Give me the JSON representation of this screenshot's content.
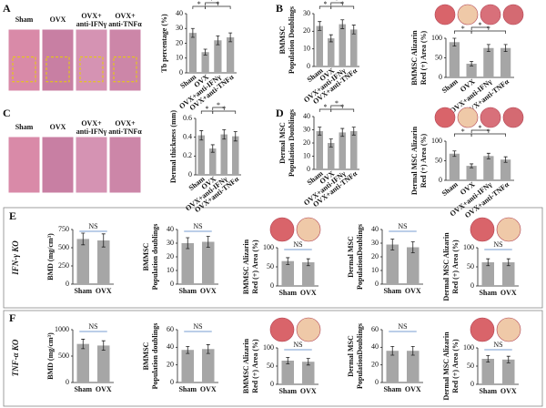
{
  "panels": [
    {
      "letter": "A",
      "image_labels": [
        [
          "Sham"
        ],
        [
          "OVX"
        ],
        [
          "OVX+",
          "anti-IFNγ"
        ],
        [
          "OVX+",
          "anti-TNFα"
        ]
      ]
    },
    {
      "letter": "B"
    },
    {
      "letter": "C",
      "image_labels": [
        [
          "Sham"
        ],
        [
          "OVX"
        ],
        [
          "OVX+",
          "anti-IFNγ"
        ],
        [
          "OVX+",
          "anti-TNFα"
        ]
      ]
    },
    {
      "letter": "D"
    },
    {
      "letter": "E",
      "label": "IFN-γ KO"
    },
    {
      "letter": "F",
      "label": "TNF-α KO"
    }
  ],
  "chart_data": [
    {
      "type": "bar",
      "ylabel": [
        "Tb percentage (%)"
      ],
      "categories": [
        "Sham",
        "OVX",
        "OVX+anti-IFNγ",
        "OVX+anti-TNFα"
      ],
      "values": [
        27,
        14,
        22,
        24
      ],
      "errors": [
        3,
        2,
        3,
        3
      ],
      "ylim": [
        0,
        40
      ],
      "yticks": [
        0,
        10,
        20,
        30,
        40
      ],
      "color": "#a6a6a6",
      "annotations": [
        "*",
        "*",
        "*"
      ]
    },
    {
      "type": "bar",
      "ylabel": [
        "BMMSC",
        "Population Doublings"
      ],
      "categories": [
        "Sham",
        "OVX",
        "OVX+anti-IFNγ",
        "OVX+anti-TNFα"
      ],
      "values": [
        23,
        16,
        24,
        21
      ],
      "errors": [
        2.5,
        2,
        2.5,
        2.5
      ],
      "ylim": [
        0,
        30
      ],
      "yticks": [
        0,
        10,
        20,
        30
      ],
      "color": "#a6a6a6",
      "annotations": [
        "*",
        "*",
        "*"
      ]
    },
    {
      "type": "bar",
      "ylabel": [
        "BMMSC Alizarin",
        "Red (+) Area (%)"
      ],
      "categories": [
        "Sham",
        "OVX",
        "OVX+anti-IFNγ",
        "OVX+anti-TNFα"
      ],
      "values": [
        90,
        35,
        75,
        75
      ],
      "errors": [
        10,
        6,
        9,
        9
      ],
      "ylim": [
        0,
        100
      ],
      "yticks": [
        0,
        50,
        100
      ],
      "color": "#a6a6a6",
      "annotations": [
        "*",
        "*",
        "*"
      ]
    },
    {
      "type": "bar",
      "ylabel": [
        "Dermal thickness (mm)"
      ],
      "categories": [
        "Sham",
        "OVX",
        "OVX+anti-IFNγ",
        "OVX+anti-TNFα"
      ],
      "values": [
        0.42,
        0.28,
        0.43,
        0.41
      ],
      "errors": [
        0.05,
        0.04,
        0.05,
        0.05
      ],
      "ylim": [
        0,
        0.6
      ],
      "yticks": [
        0,
        0.2,
        0.4,
        0.6
      ],
      "color": "#a6a6a6",
      "annotations": [
        "*",
        "*",
        "*"
      ]
    },
    {
      "type": "bar",
      "ylabel": [
        "Dermal MSC",
        "Population Doublings"
      ],
      "categories": [
        "Sham",
        "OVX",
        "OVX+anti-IFNγ",
        "OVX+anti-TNFα"
      ],
      "values": [
        29,
        20,
        28,
        29
      ],
      "errors": [
        3,
        3,
        3,
        3
      ],
      "ylim": [
        0,
        40
      ],
      "yticks": [
        0,
        10,
        20,
        30,
        40
      ],
      "color": "#a6a6a6",
      "annotations": [
        "*",
        "*",
        "*"
      ]
    },
    {
      "type": "bar",
      "ylabel": [
        "Dermal MSC Alizarin",
        "Red (+) Area (%)"
      ],
      "categories": [
        "Sham",
        "OVX",
        "OVX+anti-IFNγ",
        "OVX+anti-TNFα"
      ],
      "values": [
        68,
        37,
        62,
        53
      ],
      "errors": [
        7,
        5,
        7,
        7
      ],
      "ylim": [
        0,
        100
      ],
      "yticks": [
        0,
        50,
        100
      ],
      "color": "#a6a6a6",
      "annotations": [
        "*",
        "*",
        "*"
      ]
    },
    {
      "type": "bar",
      "ylabel": [
        "BMD  (mg/cm³)"
      ],
      "categories": [
        "Sham",
        "OVX"
      ],
      "values": [
        620,
        600
      ],
      "errors": [
        80,
        90
      ],
      "ylim": [
        0,
        750
      ],
      "yticks": [
        0,
        250,
        500,
        750
      ],
      "color": "#a6a6a6",
      "annotations": [
        "NS"
      ]
    },
    {
      "type": "bar",
      "ylabel": [
        "BMMSC",
        "Population doublings"
      ],
      "categories": [
        "Sham",
        "OVX"
      ],
      "values": [
        30,
        31
      ],
      "errors": [
        4,
        4
      ],
      "ylim": [
        0,
        40
      ],
      "yticks": [
        0,
        10,
        20,
        30,
        40
      ],
      "color": "#a6a6a6",
      "annotations": [
        "NS"
      ]
    },
    {
      "type": "bar",
      "ylabel": [
        "BMMSC Alizarin",
        "Red (+) Area (%)"
      ],
      "categories": [
        "Sham",
        "OVX"
      ],
      "values": [
        65,
        62
      ],
      "errors": [
        9,
        9
      ],
      "ylim": [
        0,
        100
      ],
      "yticks": [
        0,
        50,
        100
      ],
      "color": "#a6a6a6",
      "annotations": [
        "NS"
      ]
    },
    {
      "type": "bar",
      "ylabel": [
        "Dermal MSC",
        "PopulationDoublings"
      ],
      "categories": [
        "Sham",
        "OVX"
      ],
      "values": [
        29,
        27
      ],
      "errors": [
        4,
        4
      ],
      "ylim": [
        0,
        40
      ],
      "yticks": [
        0,
        10,
        20,
        30,
        40
      ],
      "color": "#a6a6a6",
      "annotations": [
        "NS"
      ]
    },
    {
      "type": "bar",
      "ylabel": [
        "Dermal MSC Alizarin",
        "Red (+) Area (%)"
      ],
      "categories": [
        "Sham",
        "OVX"
      ],
      "values": [
        62,
        62
      ],
      "errors": [
        9,
        9
      ],
      "ylim": [
        0,
        100
      ],
      "yticks": [
        0,
        50,
        100
      ],
      "color": "#a6a6a6",
      "annotations": [
        "NS"
      ]
    },
    {
      "type": "bar",
      "ylabel": [
        "BMD  (mg/cm³)"
      ],
      "categories": [
        "Sham",
        "OVX"
      ],
      "values": [
        730,
        700
      ],
      "errors": [
        90,
        90
      ],
      "ylim": [
        0,
        1000
      ],
      "yticks": [
        0,
        500,
        1000
      ],
      "color": "#a6a6a6",
      "annotations": [
        "NS"
      ]
    },
    {
      "type": "bar",
      "ylabel": [
        "BMMSC",
        "Population doublings"
      ],
      "categories": [
        "Sham",
        "OVX"
      ],
      "values": [
        37,
        38
      ],
      "errors": [
        4,
        5
      ],
      "ylim": [
        0,
        60
      ],
      "yticks": [
        0,
        20,
        40,
        60
      ],
      "color": "#a6a6a6",
      "annotations": [
        "NS"
      ]
    },
    {
      "type": "bar",
      "ylabel": [
        "BMMSC Alizarin",
        "Red (+) Area (%)"
      ],
      "categories": [
        "Sham",
        "OVX"
      ],
      "values": [
        65,
        62
      ],
      "errors": [
        9,
        9
      ],
      "ylim": [
        0,
        100
      ],
      "yticks": [
        0,
        50,
        100
      ],
      "color": "#a6a6a6",
      "annotations": [
        "NS"
      ]
    },
    {
      "type": "bar",
      "ylabel": [
        "Dermal MSC",
        "PopulationDoublings"
      ],
      "categories": [
        "Sham",
        "OVX"
      ],
      "values": [
        36,
        36
      ],
      "errors": [
        5,
        5
      ],
      "ylim": [
        0,
        60
      ],
      "yticks": [
        0,
        20,
        40,
        60
      ],
      "color": "#a6a6a6",
      "annotations": [
        "NS"
      ]
    },
    {
      "type": "bar",
      "ylabel": [
        "Dermal MSC Alizarin",
        "Red (+) Area (%)"
      ],
      "categories": [
        "Sham",
        "OVX"
      ],
      "values": [
        70,
        68
      ],
      "errors": [
        9,
        9
      ],
      "ylim": [
        0,
        100
      ],
      "yticks": [
        0,
        50,
        100
      ],
      "color": "#a6a6a6",
      "annotations": [
        "NS"
      ]
    }
  ]
}
